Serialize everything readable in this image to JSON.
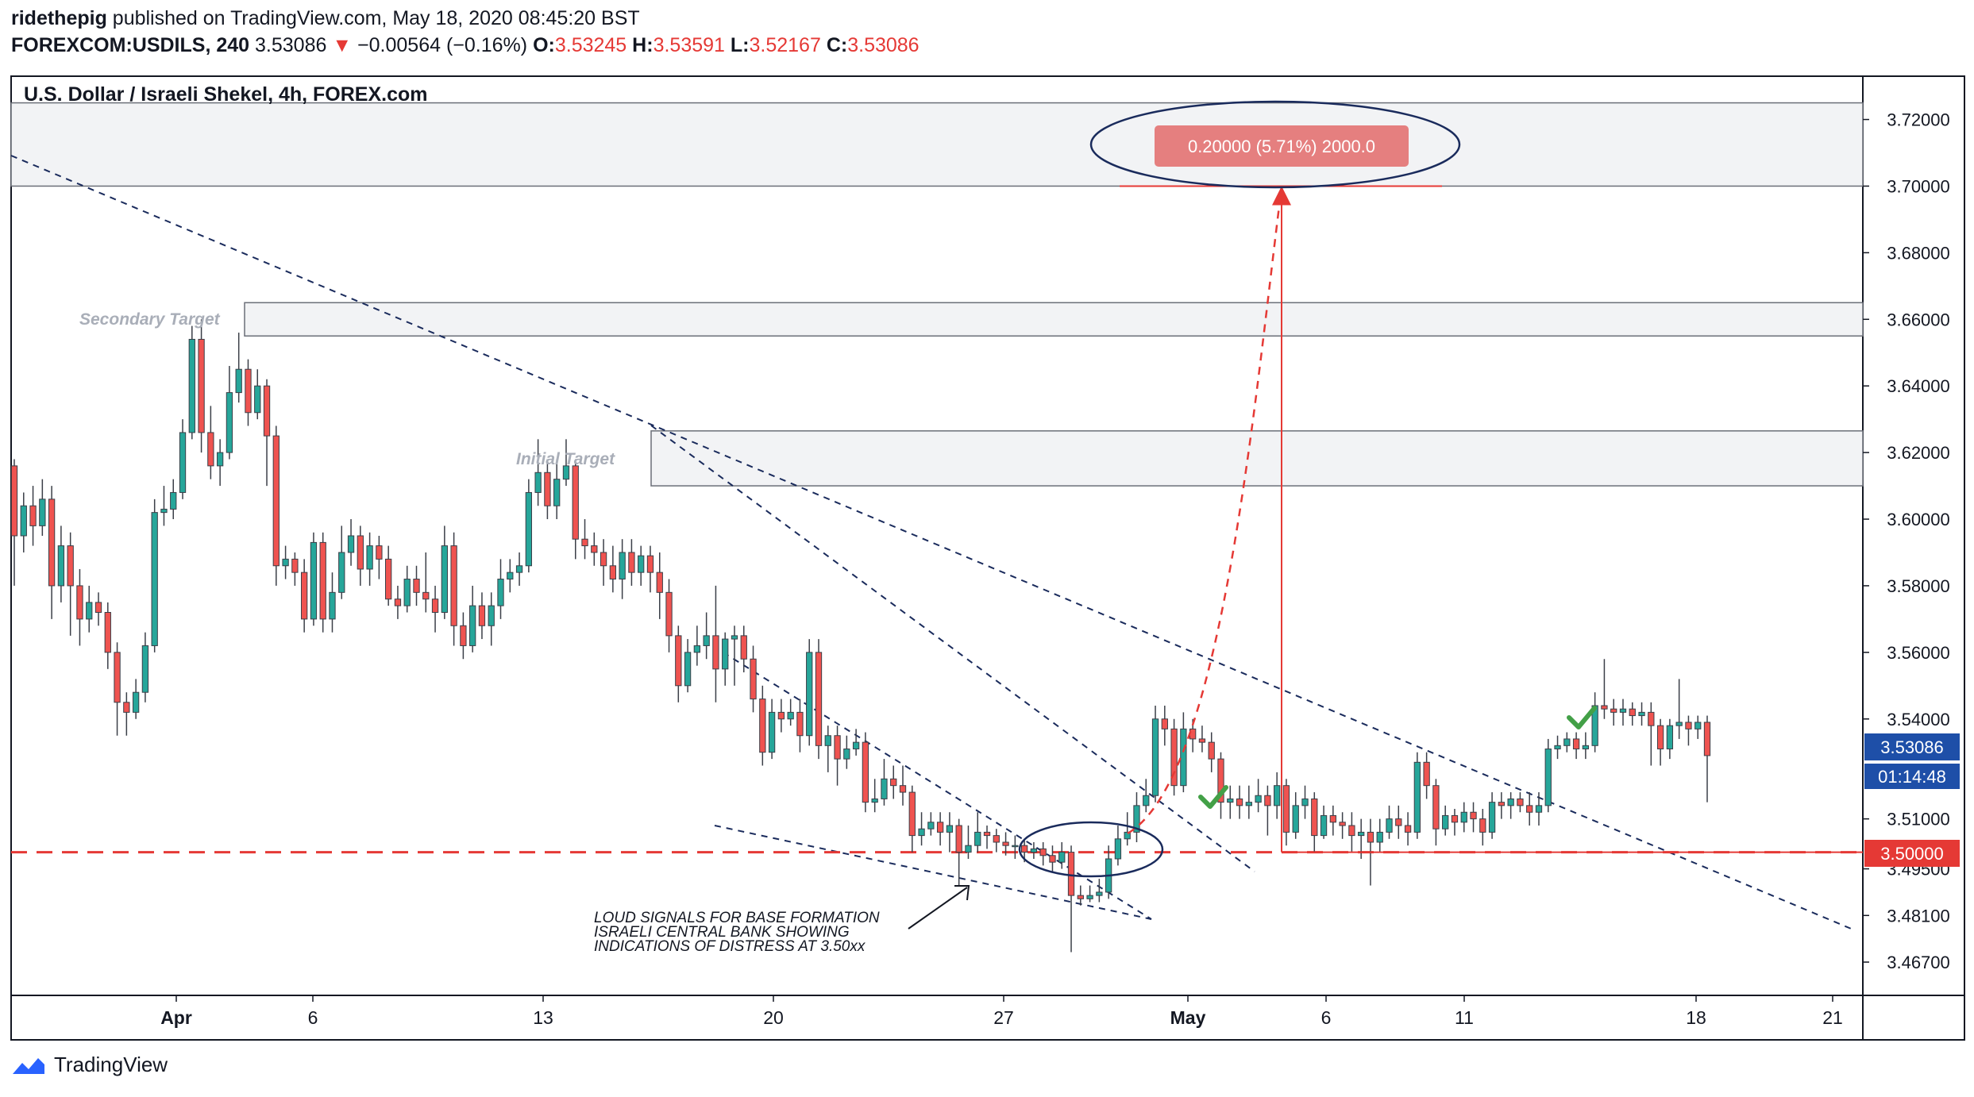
{
  "header": {
    "publisher": "ridethepig",
    "published_text": " published on TradingView.com, May 18, 2020 08:45:20 BST",
    "symbol": "FOREXCOM:USDILS, 240",
    "price": "3.53086",
    "change_arrow": "▼",
    "change": "−0.00564 (−0.16%)",
    "o_label": "O:",
    "o_value": "3.53245",
    "h_label": "H:",
    "h_value": "3.53591",
    "l_label": "L:",
    "l_value": "3.52167",
    "c_label": "C:",
    "c_value": "3.53086"
  },
  "footer": {
    "brand": "TradingView"
  },
  "colors": {
    "up": "#26a69a",
    "down": "#ef5350",
    "trend": "#1a2b5c",
    "accent": "#e53935",
    "band": "#f2f3f5"
  },
  "chart_data": {
    "type": "candlestick",
    "title": "U.S. Dollar / Israeli Shekel, 4h, FOREX.com",
    "x_ticks": [
      "Apr",
      "6",
      "13",
      "20",
      "27",
      "May",
      "6",
      "11",
      "18",
      "21"
    ],
    "y_ticks": [
      "3.72000",
      "3.70000",
      "3.68000",
      "3.66000",
      "3.64000",
      "3.62000",
      "3.60000",
      "3.58000",
      "3.56000",
      "3.54000",
      "3.51000",
      "3.49500",
      "3.48100",
      "3.46700"
    ],
    "y_tick_values": [
      3.72,
      3.7,
      3.68,
      3.66,
      3.64,
      3.62,
      3.6,
      3.58,
      3.56,
      3.54,
      3.51,
      3.495,
      3.481,
      3.467
    ],
    "ylim": [
      3.457,
      3.733
    ],
    "last_price_label": "3.53086",
    "last_price": 3.53086,
    "countdown_label": "01:14:48",
    "level_label": "3.50000",
    "level": 3.5,
    "zones": [
      {
        "label": "",
        "from": 3.7,
        "to": 3.725
      },
      {
        "label": "Secondary Target",
        "from": 3.655,
        "to": 3.665
      },
      {
        "label": "Initial Target",
        "from": 3.61,
        "to": 3.6265
      }
    ],
    "measure_label": "0.20000 (5.71%) 2000.0",
    "measure": {
      "from": 3.5,
      "to": 3.7
    },
    "annotation": [
      "LOUD SIGNALS FOR BASE FORMATION",
      "ISRAELI CENTRAL BANK SHOWING",
      "INDICATIONS OF DISTRESS AT 3.50xx"
    ],
    "candles": [
      [
        3.616,
        3.595,
        3.618,
        3.58
      ],
      [
        3.595,
        3.604,
        3.608,
        3.59
      ],
      [
        3.604,
        3.598,
        3.61,
        3.592
      ],
      [
        3.598,
        3.606,
        3.612,
        3.595
      ],
      [
        3.606,
        3.58,
        3.61,
        3.57
      ],
      [
        3.58,
        3.592,
        3.598,
        3.575
      ],
      [
        3.592,
        3.58,
        3.596,
        3.565
      ],
      [
        3.58,
        3.57,
        3.585,
        3.562
      ],
      [
        3.57,
        3.575,
        3.58,
        3.566
      ],
      [
        3.575,
        3.572,
        3.578,
        3.568
      ],
      [
        3.572,
        3.56,
        3.575,
        3.555
      ],
      [
        3.56,
        3.545,
        3.563,
        3.535
      ],
      [
        3.545,
        3.542,
        3.548,
        3.535
      ],
      [
        3.542,
        3.548,
        3.552,
        3.54
      ],
      [
        3.548,
        3.562,
        3.566,
        3.545
      ],
      [
        3.562,
        3.602,
        3.606,
        3.56
      ],
      [
        3.602,
        3.603,
        3.61,
        3.598
      ],
      [
        3.603,
        3.608,
        3.612,
        3.6
      ],
      [
        3.608,
        3.626,
        3.63,
        3.606
      ],
      [
        3.626,
        3.654,
        3.658,
        3.624
      ],
      [
        3.654,
        3.626,
        3.66,
        3.62
      ],
      [
        3.626,
        3.616,
        3.634,
        3.612
      ],
      [
        3.616,
        3.62,
        3.624,
        3.61
      ],
      [
        3.62,
        3.638,
        3.646,
        3.618
      ],
      [
        3.638,
        3.645,
        3.656,
        3.635
      ],
      [
        3.645,
        3.632,
        3.648,
        3.628
      ],
      [
        3.632,
        3.64,
        3.645,
        3.63
      ],
      [
        3.64,
        3.625,
        3.642,
        3.61
      ],
      [
        3.625,
        3.586,
        3.628,
        3.58
      ],
      [
        3.586,
        3.588,
        3.592,
        3.582
      ],
      [
        3.588,
        3.584,
        3.59,
        3.58
      ],
      [
        3.584,
        3.57,
        3.588,
        3.566
      ],
      [
        3.57,
        3.593,
        3.596,
        3.568
      ],
      [
        3.593,
        3.57,
        3.596,
        3.566
      ],
      [
        3.57,
        3.578,
        3.584,
        3.566
      ],
      [
        3.578,
        3.59,
        3.598,
        3.576
      ],
      [
        3.59,
        3.595,
        3.6,
        3.586
      ],
      [
        3.595,
        3.585,
        3.598,
        3.58
      ],
      [
        3.585,
        3.592,
        3.596,
        3.58
      ],
      [
        3.592,
        3.588,
        3.595,
        3.582
      ],
      [
        3.588,
        3.576,
        3.592,
        3.574
      ],
      [
        3.576,
        3.574,
        3.58,
        3.57
      ],
      [
        3.574,
        3.582,
        3.586,
        3.572
      ],
      [
        3.582,
        3.578,
        3.586,
        3.574
      ],
      [
        3.578,
        3.576,
        3.59,
        3.572
      ],
      [
        3.576,
        3.572,
        3.58,
        3.566
      ],
      [
        3.572,
        3.592,
        3.598,
        3.57
      ],
      [
        3.592,
        3.568,
        3.596,
        3.562
      ],
      [
        3.568,
        3.562,
        3.572,
        3.558
      ],
      [
        3.562,
        3.574,
        3.58,
        3.56
      ],
      [
        3.574,
        3.568,
        3.578,
        3.564
      ],
      [
        3.568,
        3.574,
        3.578,
        3.562
      ],
      [
        3.574,
        3.582,
        3.588,
        3.57
      ],
      [
        3.582,
        3.584,
        3.588,
        3.578
      ],
      [
        3.584,
        3.586,
        3.59,
        3.58
      ],
      [
        3.586,
        3.608,
        3.612,
        3.584
      ],
      [
        3.608,
        3.614,
        3.624,
        3.604
      ],
      [
        3.614,
        3.604,
        3.618,
        3.6
      ],
      [
        3.604,
        3.612,
        3.618,
        3.6
      ],
      [
        3.612,
        3.616,
        3.624,
        3.61
      ],
      [
        3.616,
        3.594,
        3.618,
        3.588
      ],
      [
        3.594,
        3.592,
        3.6,
        3.588
      ],
      [
        3.592,
        3.59,
        3.596,
        3.586
      ],
      [
        3.59,
        3.586,
        3.594,
        3.58
      ],
      [
        3.586,
        3.582,
        3.592,
        3.578
      ],
      [
        3.582,
        3.59,
        3.594,
        3.576
      ],
      [
        3.59,
        3.584,
        3.594,
        3.58
      ],
      [
        3.584,
        3.589,
        3.592,
        3.58
      ],
      [
        3.589,
        3.584,
        3.592,
        3.578
      ],
      [
        3.584,
        3.578,
        3.59,
        3.57
      ],
      [
        3.578,
        3.565,
        3.582,
        3.56
      ],
      [
        3.565,
        3.55,
        3.568,
        3.545
      ],
      [
        3.55,
        3.56,
        3.564,
        3.548
      ],
      [
        3.56,
        3.562,
        3.568,
        3.556
      ],
      [
        3.562,
        3.565,
        3.572,
        3.558
      ],
      [
        3.565,
        3.555,
        3.58,
        3.545
      ],
      [
        3.555,
        3.564,
        3.566,
        3.55
      ],
      [
        3.564,
        3.565,
        3.568,
        3.55
      ],
      [
        3.565,
        3.558,
        3.568,
        3.554
      ],
      [
        3.558,
        3.546,
        3.562,
        3.542
      ],
      [
        3.546,
        3.53,
        3.55,
        3.526
      ],
      [
        3.53,
        3.542,
        3.546,
        3.528
      ],
      [
        3.542,
        3.54,
        3.546,
        3.536
      ],
      [
        3.54,
        3.542,
        3.546,
        3.538
      ],
      [
        3.542,
        3.535,
        3.546,
        3.53
      ],
      [
        3.535,
        3.56,
        3.564,
        3.532
      ],
      [
        3.56,
        3.532,
        3.564,
        3.528
      ],
      [
        3.532,
        3.535,
        3.538,
        3.524
      ],
      [
        3.535,
        3.528,
        3.538,
        3.52
      ],
      [
        3.528,
        3.531,
        3.535,
        3.525
      ],
      [
        3.531,
        3.533,
        3.537,
        3.529
      ],
      [
        3.533,
        3.515,
        3.536,
        3.512
      ],
      [
        3.515,
        3.516,
        3.522,
        3.512
      ],
      [
        3.516,
        3.522,
        3.528,
        3.514
      ],
      [
        3.522,
        3.52,
        3.526,
        3.516
      ],
      [
        3.52,
        3.518,
        3.526,
        3.514
      ],
      [
        3.518,
        3.505,
        3.52,
        3.5
      ],
      [
        3.505,
        3.507,
        3.512,
        3.502
      ],
      [
        3.507,
        3.509,
        3.512,
        3.505
      ],
      [
        3.509,
        3.506,
        3.512,
        3.502
      ],
      [
        3.506,
        3.508,
        3.512,
        3.5
      ],
      [
        3.508,
        3.5,
        3.51,
        3.49
      ],
      [
        3.5,
        3.502,
        3.508,
        3.498
      ],
      [
        3.502,
        3.506,
        3.512,
        3.5
      ],
      [
        3.506,
        3.505,
        3.508,
        3.501
      ],
      [
        3.505,
        3.503,
        3.507,
        3.5
      ],
      [
        3.503,
        3.502,
        3.506,
        3.499
      ],
      [
        3.502,
        3.502,
        3.505,
        3.498
      ],
      [
        3.502,
        3.5,
        3.504,
        3.497
      ],
      [
        3.5,
        3.501,
        3.503,
        3.498
      ],
      [
        3.501,
        3.499,
        3.503,
        3.496
      ],
      [
        3.499,
        3.497,
        3.502,
        3.494
      ],
      [
        3.497,
        3.5,
        3.503,
        3.495
      ],
      [
        3.5,
        3.487,
        3.502,
        3.47
      ],
      [
        3.487,
        3.486,
        3.49,
        3.484
      ],
      [
        3.486,
        3.487,
        3.49,
        3.485
      ],
      [
        3.487,
        3.488,
        3.492,
        3.485
      ],
      [
        3.488,
        3.498,
        3.502,
        3.486
      ],
      [
        3.498,
        3.504,
        3.508,
        3.496
      ],
      [
        3.504,
        3.506,
        3.512,
        3.502
      ],
      [
        3.506,
        3.514,
        3.518,
        3.503
      ],
      [
        3.514,
        3.517,
        3.522,
        3.512
      ],
      [
        3.517,
        3.54,
        3.544,
        3.515
      ],
      [
        3.54,
        3.537,
        3.544,
        3.532
      ],
      [
        3.537,
        3.52,
        3.54,
        3.517
      ],
      [
        3.52,
        3.537,
        3.542,
        3.518
      ],
      [
        3.537,
        3.534,
        3.54,
        3.53
      ],
      [
        3.534,
        3.533,
        3.538,
        3.53
      ],
      [
        3.533,
        3.528,
        3.536,
        3.524
      ],
      [
        3.528,
        3.515,
        3.53,
        3.51
      ],
      [
        3.515,
        3.516,
        3.52,
        3.51
      ],
      [
        3.516,
        3.514,
        3.52,
        3.51
      ],
      [
        3.514,
        3.515,
        3.52,
        3.51
      ],
      [
        3.515,
        3.517,
        3.522,
        3.512
      ],
      [
        3.517,
        3.514,
        3.52,
        3.505
      ],
      [
        3.514,
        3.52,
        3.524,
        3.51
      ],
      [
        3.52,
        3.506,
        3.522,
        3.502
      ],
      [
        3.506,
        3.514,
        3.518,
        3.504
      ],
      [
        3.514,
        3.516,
        3.52,
        3.51
      ],
      [
        3.516,
        3.505,
        3.518,
        3.5
      ],
      [
        3.505,
        3.511,
        3.514,
        3.504
      ],
      [
        3.511,
        3.509,
        3.514,
        3.505
      ],
      [
        3.509,
        3.508,
        3.512,
        3.504
      ],
      [
        3.508,
        3.505,
        3.512,
        3.5
      ],
      [
        3.505,
        3.506,
        3.51,
        3.498
      ],
      [
        3.506,
        3.503,
        3.51,
        3.49
      ],
      [
        3.503,
        3.506,
        3.51,
        3.5
      ],
      [
        3.506,
        3.51,
        3.514,
        3.504
      ],
      [
        3.51,
        3.508,
        3.514,
        3.504
      ],
      [
        3.508,
        3.506,
        3.512,
        3.502
      ],
      [
        3.506,
        3.527,
        3.53,
        3.504
      ],
      [
        3.527,
        3.52,
        3.53,
        3.516
      ],
      [
        3.52,
        3.507,
        3.522,
        3.502
      ],
      [
        3.507,
        3.511,
        3.514,
        3.505
      ],
      [
        3.511,
        3.509,
        3.513,
        3.505
      ],
      [
        3.509,
        3.512,
        3.515,
        3.506
      ],
      [
        3.512,
        3.51,
        3.515,
        3.506
      ],
      [
        3.51,
        3.506,
        3.513,
        3.502
      ],
      [
        3.506,
        3.515,
        3.518,
        3.504
      ],
      [
        3.515,
        3.514,
        3.518,
        3.51
      ],
      [
        3.514,
        3.516,
        3.518,
        3.51
      ],
      [
        3.516,
        3.514,
        3.518,
        3.512
      ],
      [
        3.514,
        3.512,
        3.518,
        3.508
      ],
      [
        3.512,
        3.514,
        3.518,
        3.508
      ],
      [
        3.514,
        3.531,
        3.534,
        3.512
      ],
      [
        3.531,
        3.532,
        3.535,
        3.528
      ],
      [
        3.532,
        3.534,
        3.536,
        3.53
      ],
      [
        3.534,
        3.531,
        3.536,
        3.528
      ],
      [
        3.531,
        3.532,
        3.536,
        3.528
      ],
      [
        3.532,
        3.544,
        3.548,
        3.53
      ],
      [
        3.544,
        3.543,
        3.558,
        3.54
      ],
      [
        3.543,
        3.542,
        3.546,
        3.538
      ],
      [
        3.542,
        3.543,
        3.546,
        3.538
      ],
      [
        3.543,
        3.541,
        3.545,
        3.538
      ],
      [
        3.541,
        3.542,
        3.545,
        3.538
      ],
      [
        3.542,
        3.538,
        3.545,
        3.526
      ],
      [
        3.538,
        3.531,
        3.54,
        3.526
      ],
      [
        3.531,
        3.538,
        3.54,
        3.528
      ],
      [
        3.538,
        3.539,
        3.552,
        3.534
      ],
      [
        3.539,
        3.537,
        3.541,
        3.532
      ],
      [
        3.537,
        3.539,
        3.541,
        3.534
      ],
      [
        3.539,
        3.529,
        3.541,
        3.515
      ]
    ]
  }
}
